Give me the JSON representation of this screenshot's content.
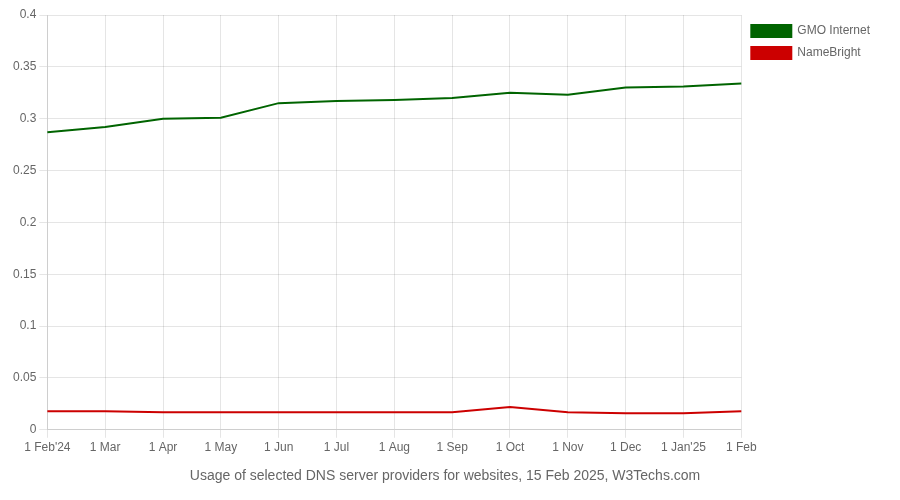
{
  "chart_data": {
    "type": "line",
    "title": "Usage of selected DNS server providers for websites, 15 Feb 2025, W3Techs.com",
    "categories": [
      "1 Feb'24",
      "1 Mar",
      "1 Apr",
      "1 May",
      "1 Jun",
      "1 Jul",
      "1 Aug",
      "1 Sep",
      "1 Oct",
      "1 Nov",
      "1 Dec",
      "1 Jan'25",
      "1 Feb"
    ],
    "series": [
      {
        "name": "GMO Internet",
        "color": "#006400",
        "values": [
          0.287,
          0.292,
          0.3,
          0.301,
          0.315,
          0.317,
          0.318,
          0.32,
          0.325,
          0.323,
          0.33,
          0.331,
          0.334
        ]
      },
      {
        "name": "NameBright",
        "color": "#cc0000",
        "values": [
          0.018,
          0.018,
          0.017,
          0.017,
          0.017,
          0.017,
          0.017,
          0.017,
          0.022,
          0.017,
          0.016,
          0.016,
          0.018
        ]
      }
    ],
    "ylim": [
      0,
      0.4
    ],
    "yticks": [
      0,
      0.05,
      0.1,
      0.15,
      0.2,
      0.25,
      0.3,
      0.35,
      0.4
    ],
    "grid": true,
    "legend": "right"
  }
}
